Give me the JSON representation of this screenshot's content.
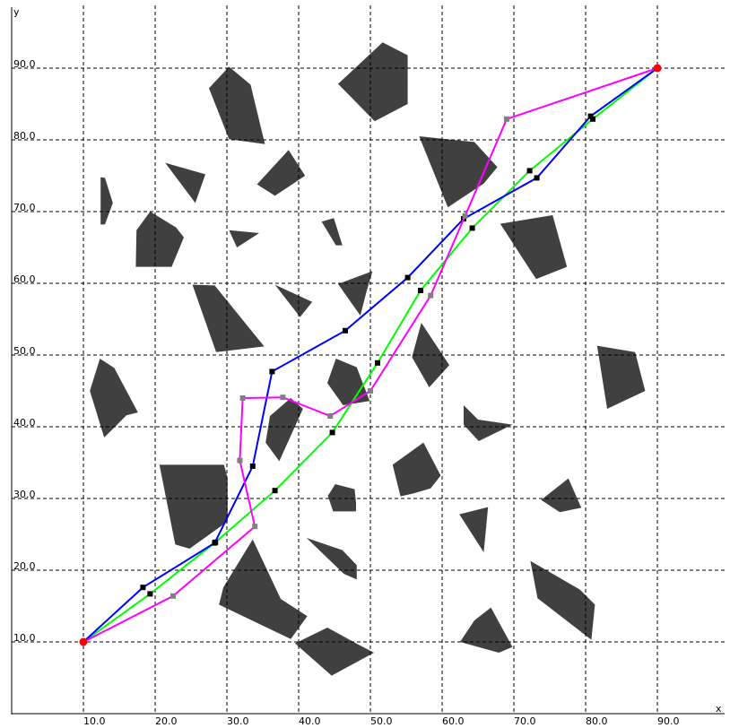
{
  "chart_data": {
    "type": "line",
    "xlabel": "x",
    "ylabel": "y",
    "xlim": [
      0,
      100
    ],
    "ylim": [
      0,
      100
    ],
    "xticks": [
      10,
      20,
      30,
      40,
      50,
      60,
      70,
      80,
      90
    ],
    "yticks": [
      10,
      20,
      30,
      40,
      50,
      60,
      70,
      80,
      90
    ],
    "xtick_labels": [
      "10.0",
      "20.0",
      "30.0",
      "40.0",
      "50.0",
      "60.0",
      "70.0",
      "80.0",
      "90.0"
    ],
    "ytick_labels": [
      "10.0",
      "20.0",
      "30.0",
      "40.0",
      "50.0",
      "60.0",
      "70.0",
      "80.0",
      "90.0"
    ],
    "grid": true,
    "colors": {
      "obstacle": "#404040",
      "grid": "#000000",
      "endpoint": "#ff0000",
      "green_path": "#00ff00",
      "blue_path": "#0000ff",
      "magenta_path": "#ff00ff"
    },
    "endpoints": [
      [
        10,
        10
      ],
      [
        90,
        90
      ]
    ],
    "series": [
      {
        "color": "#00ff00",
        "marker_color": "#000000",
        "points": [
          [
            10,
            10
          ],
          [
            19.3,
            16.7
          ],
          [
            28.4,
            23.9
          ],
          [
            36.7,
            31.1
          ],
          [
            44.7,
            39.2
          ],
          [
            51.0,
            48.9
          ],
          [
            57.0,
            59.0
          ],
          [
            64.2,
            67.7
          ],
          [
            72.2,
            75.7
          ],
          [
            81.0,
            82.9
          ],
          [
            90,
            90
          ]
        ]
      },
      {
        "color": "#0000ff",
        "marker_color": "#000000",
        "points": [
          [
            10,
            10
          ],
          [
            18.3,
            17.6
          ],
          [
            28.3,
            23.8
          ],
          [
            33.6,
            34.5
          ],
          [
            36.3,
            47.7
          ],
          [
            46.5,
            53.4
          ],
          [
            55.2,
            60.8
          ],
          [
            63.0,
            69.0
          ],
          [
            73.2,
            74.7
          ],
          [
            80.7,
            83.3
          ],
          [
            90,
            90
          ]
        ]
      },
      {
        "color": "#ff00ff",
        "marker_color": "#808080",
        "points": [
          [
            10,
            10
          ],
          [
            22.5,
            16.4
          ],
          [
            33.9,
            26.1
          ],
          [
            31.8,
            35.3
          ],
          [
            32.2,
            44.0
          ],
          [
            37.8,
            44.1
          ],
          [
            44.4,
            41.5
          ],
          [
            50.0,
            45.0
          ],
          [
            58.4,
            58.3
          ],
          [
            63.2,
            69.4
          ],
          [
            69.0,
            82.9
          ],
          [
            90,
            90
          ]
        ]
      }
    ],
    "obstacles": [
      [
        [
          45.5,
          87.8
        ],
        [
          51.7,
          93.6
        ],
        [
          55.2,
          91.8
        ],
        [
          55.2,
          85.0
        ],
        [
          50.6,
          82.6
        ]
      ],
      [
        [
          27.5,
          87.2
        ],
        [
          30.3,
          90.2
        ],
        [
          33.3,
          87.7
        ],
        [
          35.3,
          79.4
        ],
        [
          30.3,
          80.1
        ]
      ],
      [
        [
          56.8,
          80.5
        ],
        [
          60.8,
          70.6
        ],
        [
          65.8,
          73.9
        ],
        [
          67.7,
          76.2
        ],
        [
          64.5,
          79.7
        ]
      ],
      [
        [
          21.4,
          76.8
        ],
        [
          25.6,
          71.2
        ],
        [
          27.0,
          75.2
        ]
      ],
      [
        [
          34.2,
          73.8
        ],
        [
          36.7,
          72.2
        ],
        [
          40.9,
          75.0
        ],
        [
          38.6,
          78.6
        ]
      ],
      [
        [
          12.4,
          74.8
        ],
        [
          13.0,
          74.7
        ],
        [
          14.1,
          71.2
        ],
        [
          13.0,
          68.2
        ],
        [
          12.4,
          68.2
        ]
      ],
      [
        [
          17.4,
          67.4
        ],
        [
          19.3,
          70.0
        ],
        [
          22.9,
          67.8
        ],
        [
          24.0,
          66.4
        ],
        [
          22.3,
          62.3
        ],
        [
          17.3,
          62.3
        ]
      ],
      [
        [
          30.3,
          67.4
        ],
        [
          34.5,
          67.0
        ],
        [
          31.4,
          65.0
        ]
      ],
      [
        [
          43.2,
          68.6
        ],
        [
          44.9,
          69.1
        ],
        [
          46.1,
          65.3
        ],
        [
          45.2,
          65.3
        ]
      ],
      [
        [
          68.1,
          68.3
        ],
        [
          75.4,
          69.5
        ],
        [
          77.4,
          62.3
        ],
        [
          73.1,
          60.6
        ]
      ],
      [
        [
          25.2,
          59.8
        ],
        [
          28.3,
          59.7
        ],
        [
          35.2,
          51.2
        ],
        [
          28.5,
          50.4
        ]
      ],
      [
        [
          36.7,
          59.8
        ],
        [
          41.9,
          57.4
        ],
        [
          40.2,
          55.3
        ]
      ],
      [
        [
          45.5,
          59.9
        ],
        [
          48.6,
          55.5
        ],
        [
          49.5,
          59.0
        ],
        [
          50.3,
          61.7
        ]
      ],
      [
        [
          57.1,
          54.5
        ],
        [
          61.0,
          48.6
        ],
        [
          58.2,
          45.5
        ],
        [
          55.8,
          49.7
        ]
      ],
      [
        [
          81.6,
          51.3
        ],
        [
          86.9,
          50.4
        ],
        [
          88.3,
          45.0
        ],
        [
          83.0,
          42.5
        ]
      ],
      [
        [
          45.2,
          49.5
        ],
        [
          48.1,
          48.3
        ],
        [
          49.9,
          43.6
        ],
        [
          46.2,
          43.0
        ],
        [
          44.0,
          46.1
        ]
      ],
      [
        [
          12.3,
          49.5
        ],
        [
          14.3,
          48.2
        ],
        [
          17.6,
          42.0
        ],
        [
          16.0,
          41.6
        ],
        [
          12.9,
          38.5
        ],
        [
          10.9,
          45.0
        ]
      ],
      [
        [
          40.6,
          42.5
        ],
        [
          37.3,
          35.2
        ],
        [
          35.4,
          37.8
        ],
        [
          36.0,
          41.5
        ],
        [
          38.9,
          44.0
        ]
      ],
      [
        [
          63.0,
          43.0
        ],
        [
          65.0,
          41.0
        ],
        [
          69.8,
          40.3
        ],
        [
          65.1,
          38.0
        ],
        [
          63.0,
          40.3
        ]
      ],
      [
        [
          53.1,
          34.7
        ],
        [
          57.4,
          37.8
        ],
        [
          59.8,
          33.2
        ],
        [
          58.4,
          31.4
        ],
        [
          56.0,
          30.7
        ],
        [
          54.2,
          30.3
        ]
      ],
      [
        [
          20.6,
          34.7
        ],
        [
          29.6,
          34.7
        ],
        [
          30.1,
          32.8
        ],
        [
          30.1,
          26.8
        ],
        [
          24.8,
          23.0
        ],
        [
          22.8,
          23.6
        ]
      ],
      [
        [
          43.9,
          30.9
        ],
        [
          44.1,
          30.4
        ],
        [
          45.1,
          32.0
        ],
        [
          47.8,
          31.3
        ],
        [
          48.0,
          29.4
        ],
        [
          48.0,
          28.2
        ],
        [
          44.8,
          28.2
        ]
      ],
      [
        [
          73.8,
          29.8
        ],
        [
          76.4,
          28.1
        ],
        [
          79.4,
          28.7
        ],
        [
          77.6,
          32.8
        ]
      ],
      [
        [
          62.4,
          27.8
        ],
        [
          66.4,
          28.8
        ],
        [
          65.8,
          22.5
        ]
      ],
      [
        [
          41.1,
          24.5
        ],
        [
          46.3,
          19.5
        ],
        [
          48.1,
          18.7
        ],
        [
          48.1,
          20.7
        ],
        [
          46.1,
          22.8
        ]
      ],
      [
        [
          33.6,
          24.3
        ],
        [
          29.5,
          17.6
        ],
        [
          28.9,
          15.2
        ],
        [
          38.9,
          10.4
        ],
        [
          41.2,
          13.6
        ],
        [
          37.5,
          16.0
        ]
      ],
      [
        [
          72.3,
          21.3
        ],
        [
          73.3,
          16.1
        ],
        [
          80.8,
          10.3
        ],
        [
          81.3,
          15.2
        ],
        [
          79.2,
          17.3
        ]
      ],
      [
        [
          64.5,
          13.0
        ],
        [
          62.5,
          10.0
        ],
        [
          67.9,
          8.5
        ],
        [
          69.8,
          9.3
        ],
        [
          66.8,
          14.8
        ]
      ],
      [
        [
          39.5,
          9.8
        ],
        [
          44.6,
          5.3
        ],
        [
          50.5,
          8.5
        ],
        [
          48.4,
          9.6
        ],
        [
          44.0,
          12.0
        ]
      ]
    ]
  }
}
